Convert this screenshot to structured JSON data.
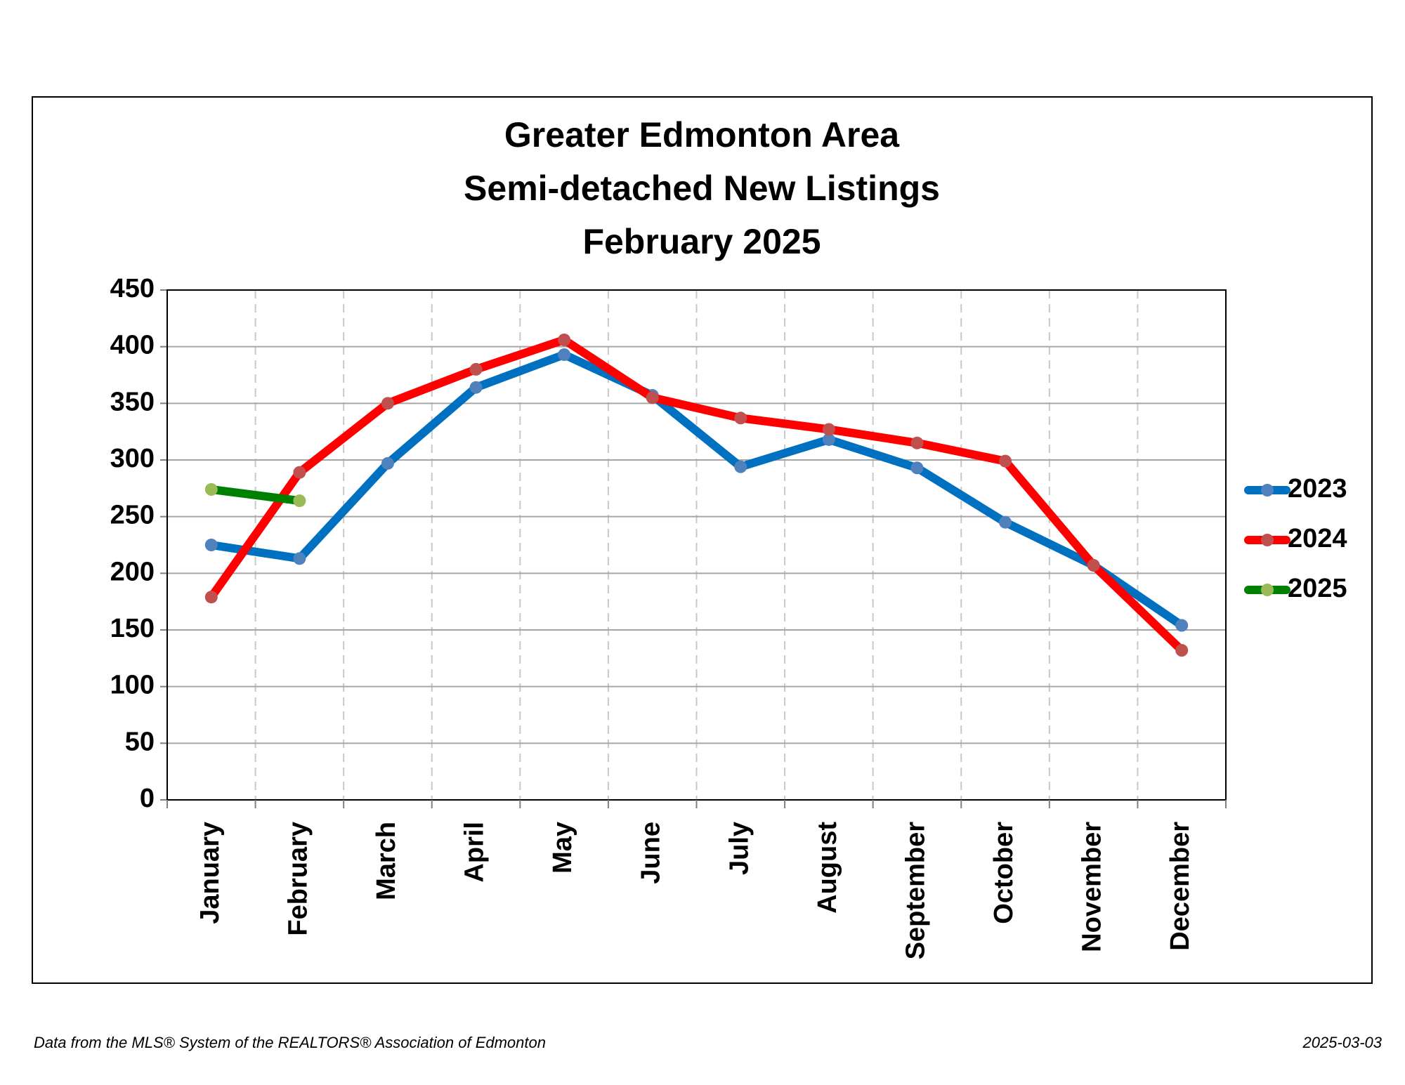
{
  "chart_data": {
    "type": "line",
    "title": [
      "Greater Edmonton Area",
      "Semi-detached New Listings",
      "February 2025"
    ],
    "categories": [
      "January",
      "February",
      "March",
      "April",
      "May",
      "June",
      "July",
      "August",
      "September",
      "October",
      "November",
      "December"
    ],
    "series": [
      {
        "name": "2023",
        "color": "#0070c0",
        "marker_color": "#4f81bd",
        "values": [
          225,
          213,
          297,
          364,
          393,
          357,
          294,
          318,
          293,
          245,
          207,
          154
        ]
      },
      {
        "name": "2024",
        "color": "#ff0000",
        "marker_color": "#c0504d",
        "values": [
          179,
          289,
          350,
          380,
          406,
          355,
          337,
          327,
          315,
          299,
          207,
          132
        ]
      },
      {
        "name": "2025",
        "color": "#008000",
        "marker_color": "#9bbb59",
        "values": [
          274,
          264,
          null,
          null,
          null,
          null,
          null,
          null,
          null,
          null,
          null,
          null
        ]
      }
    ],
    "ylim": [
      0,
      450
    ],
    "yticks": [
      0,
      50,
      100,
      150,
      200,
      250,
      300,
      350,
      400,
      450
    ],
    "grid": true,
    "legend": "right"
  },
  "footer": {
    "source": "Data from the MLS® System of the REALTORS® Association of Edmonton",
    "date": "2025-03-03"
  }
}
